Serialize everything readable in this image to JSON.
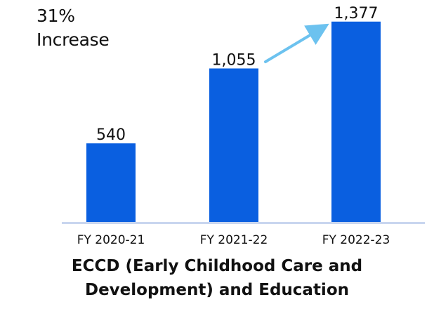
{
  "annotation": {
    "line1": "31%",
    "line2": "Increase"
  },
  "chart_data": {
    "type": "bar",
    "categories": [
      "FY 2020-21",
      "FY 2021-22",
      "FY 2022-23"
    ],
    "values": [
      540,
      1055,
      1377
    ],
    "value_labels": [
      "540",
      "1,055",
      "1,377"
    ],
    "ylim": [
      0,
      1400
    ],
    "grid": false,
    "bar_color": "#0a5fe0",
    "arrow_color": "#6cc2ef",
    "baseline_color": "#c9d6ef"
  },
  "title": {
    "line1": "ECCD (Early Childhood Care and",
    "line2": "Development) and Education"
  }
}
